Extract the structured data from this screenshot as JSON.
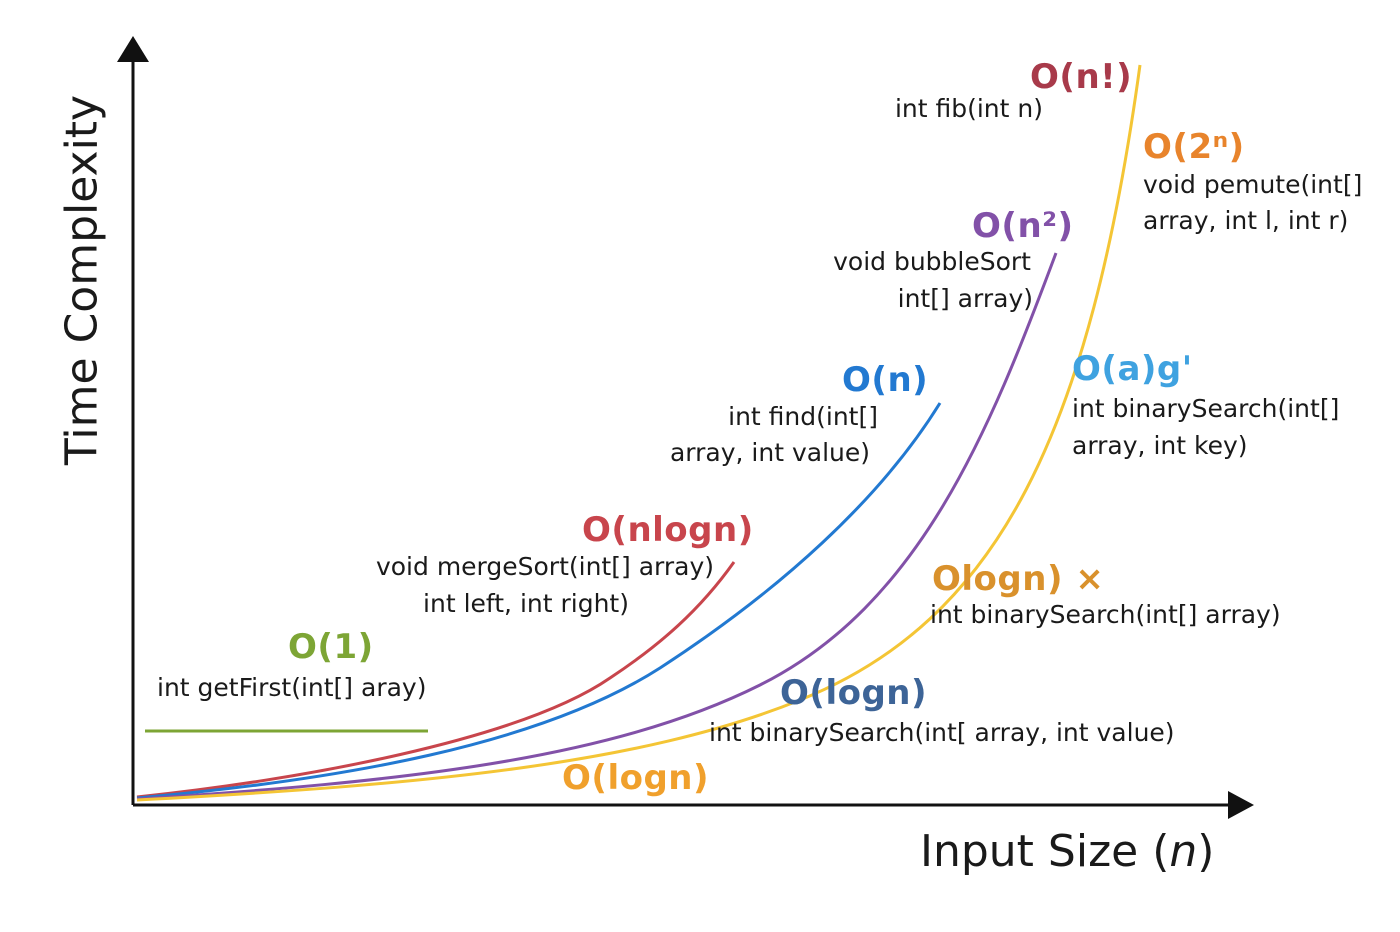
{
  "axes": {
    "y_title": "Time Complexity",
    "x_title": "Input Size (n)"
  },
  "colors": {
    "o1": "#7da535",
    "nlogn": "#c8454c",
    "n": "#2279d1",
    "n2": "#8251a8",
    "exp": "#f4c535",
    "fact": "#a83a4a",
    "pow2": "#e8842c",
    "oag": "#3fa2e0",
    "logn_orange": "#d9912c",
    "logn_blue": "#3d6497",
    "logn_bottom": "#f0a02c",
    "axis": "#111111"
  },
  "annotations": [
    {
      "id": "o1",
      "big": "O(1)",
      "code": [
        "int getFirst(int[] aray)"
      ]
    },
    {
      "id": "nlogn",
      "big": "O(nlogn)",
      "code": [
        "void mergeSort(int[] array)",
        "int left, int right)"
      ]
    },
    {
      "id": "n",
      "big": "O(n)",
      "code": [
        "int find(int[]",
        "array, int value)"
      ]
    },
    {
      "id": "n2",
      "big": "O(n²)",
      "code": [
        "void bubbleSort",
        "int[] array)"
      ]
    },
    {
      "id": "fact",
      "big": "O(n!)",
      "code": [
        "int fib(int n)"
      ]
    },
    {
      "id": "pow2",
      "big": "O(2ⁿ)",
      "code": [
        "void pemute(int[]",
        "array, int l, int r)"
      ]
    },
    {
      "id": "oag",
      "big": "O(a)g'",
      "code": [
        "int binarySearch(int[]",
        "array, int key)"
      ]
    },
    {
      "id": "logn_orange",
      "big": "Ologn) ×",
      "code": [
        "int binarySearch(int[] array)"
      ]
    },
    {
      "id": "logn_blue",
      "big": "O(logn)",
      "code": [
        "int binarySearch(int[ array, int value)"
      ]
    },
    {
      "id": "logn_bottom",
      "big": "O(logn)",
      "code": []
    }
  ],
  "curves": [
    {
      "name": "O(1)",
      "color_key": "o1"
    },
    {
      "name": "O(nlogn)",
      "color_key": "nlogn"
    },
    {
      "name": "O(n)",
      "color_key": "n"
    },
    {
      "name": "O(n²)",
      "color_key": "n2"
    },
    {
      "name": "O(2ⁿ)",
      "color_key": "exp"
    }
  ]
}
